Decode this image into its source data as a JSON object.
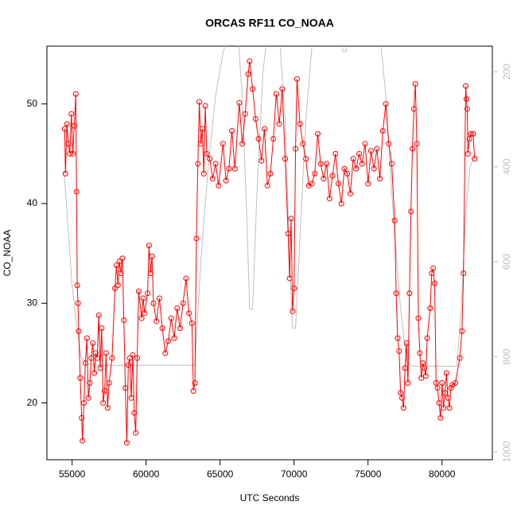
{
  "chart_data": {
    "type": "line",
    "title": "ORCAS RF11 CO_NOAA",
    "xlabel": "UTC Seconds",
    "ylabel": "CO_NOAA",
    "xlim": [
      53300,
      83400
    ],
    "ylim": [
      14.3,
      55.8
    ],
    "y2lim": [
      1017,
      146
    ],
    "xticks": [
      55000,
      60000,
      65000,
      70000,
      75000,
      80000
    ],
    "yticks": [
      20,
      30,
      40,
      50
    ],
    "y2ticks": [
      200,
      400,
      600,
      800,
      1000
    ],
    "series": [
      {
        "color": "#ff0000",
        "markers": true,
        "x": [
          54500,
          54550,
          54650,
          54750,
          54850,
          54950,
          55050,
          55150,
          55250,
          55300,
          55350,
          55400,
          55450,
          55550,
          55650,
          55700,
          55800,
          55900,
          56000,
          56100,
          56200,
          56300,
          56400,
          56500,
          56600,
          56700,
          56800,
          56900,
          57000,
          57100,
          57200,
          57300,
          57400,
          57500,
          57700,
          57900,
          58000,
          58100,
          58200,
          58300,
          58400,
          58500,
          58600,
          58700,
          58800,
          58900,
          59000,
          59100,
          59200,
          59300,
          59400,
          59500,
          59700,
          59800,
          59900,
          60100,
          60200,
          60300,
          60400,
          60500,
          60700,
          60900,
          61100,
          61300,
          61500,
          61700,
          61900,
          62100,
          62300,
          62500,
          62700,
          62900,
          63100,
          63200,
          63300,
          63400,
          63500,
          63600,
          63700,
          63800,
          63900,
          64000,
          64100,
          64300,
          64500,
          64700,
          64900,
          65200,
          65400,
          65600,
          65800,
          66000,
          66300,
          66500,
          66700,
          66900,
          67000,
          67200,
          67400,
          67600,
          67800,
          68000,
          68200,
          68400,
          68600,
          68800,
          69000,
          69200,
          69400,
          69600,
          69700,
          69800,
          69900,
          70000,
          70100,
          70200,
          70400,
          70600,
          70800,
          71000,
          71200,
          71400,
          71600,
          71800,
          72000,
          72200,
          72400,
          72600,
          72800,
          73000,
          73200,
          73400,
          73600,
          73800,
          74000,
          74200,
          74400,
          74600,
          74800,
          75000,
          75200,
          75400,
          75600,
          75800,
          76000,
          76200,
          76400,
          76600,
          76800,
          76900,
          77000,
          77100,
          77200,
          77300,
          77400,
          77500,
          77600,
          77700,
          77800,
          77900,
          78000,
          78100,
          78200,
          78300,
          78400,
          78500,
          78600,
          78700,
          78800,
          78900,
          79000,
          79200,
          79300,
          79400,
          79500,
          79600,
          79700,
          79800,
          79900,
          80000,
          80100,
          80200,
          80300,
          80400,
          80500,
          80600,
          80700,
          80900,
          81200,
          81350,
          81450,
          81600,
          81650,
          81700,
          81750,
          81850,
          81950,
          82100,
          82200
        ],
        "values": [
          47.5,
          43,
          48,
          46,
          45,
          49,
          45,
          47.8,
          51,
          41.2,
          31.8,
          30,
          27.2,
          22.5,
          18.5,
          16.2,
          20,
          24,
          26.5,
          20.5,
          22,
          24.5,
          26,
          23,
          25,
          24.5,
          28.8,
          23.5,
          27.5,
          20,
          21.2,
          25,
          19.5,
          22,
          24.5,
          31.5,
          33.8,
          31.8,
          34.2,
          33,
          34.5,
          28.3,
          21.5,
          16,
          23.8,
          24.5,
          20.5,
          24.8,
          19,
          17,
          24.5,
          31.2,
          28.5,
          30.5,
          29,
          31,
          35.8,
          33,
          34.7,
          30,
          28.2,
          30.5,
          27.5,
          25,
          26.2,
          28.5,
          26.5,
          29.5,
          27.5,
          30,
          32.5,
          29,
          28,
          21.2,
          22,
          36.5,
          44,
          50.2,
          46,
          47.5,
          43,
          49.8,
          45,
          44.5,
          42.5,
          44,
          41.8,
          46,
          42.3,
          43.5,
          47.3,
          43.5,
          50.1,
          46,
          49,
          53,
          54.3,
          51.5,
          48.5,
          46.5,
          44.3,
          47.5,
          41.8,
          43,
          46.5,
          51,
          48,
          51.5,
          44.5,
          37,
          32.5,
          38.5,
          29.2,
          31.5,
          45.5,
          52.5,
          48,
          46,
          44.5,
          41.8,
          42,
          43,
          47,
          44,
          42.5,
          44,
          40.5,
          42.8,
          45,
          42,
          40,
          43.5,
          43,
          41,
          44.5,
          43.5,
          45,
          44,
          46,
          42,
          45.3,
          43.5,
          45.5,
          42.5,
          47.3,
          50,
          46,
          44,
          38.3,
          31,
          26.5,
          25.2,
          21,
          20.5,
          19.5,
          23.5,
          26,
          22,
          31,
          39.2,
          45.5,
          49.5,
          52,
          46,
          28.5,
          25,
          22.5,
          24,
          23.5,
          22.7,
          26.5,
          29.5,
          33,
          33.5,
          32,
          22,
          21.5,
          20,
          18.5,
          22,
          19.5,
          21,
          23,
          20.5,
          19.5,
          21.5,
          21.8,
          22,
          24.5,
          27.2,
          33,
          51.8,
          50.5,
          49.5,
          45,
          46.5,
          47,
          47,
          44.5
        ]
      },
      {
        "color": "#bebebe",
        "axis": "y2",
        "x": [
          54450,
          54600,
          54800,
          55000,
          55300,
          55600,
          56000,
          57000,
          60000,
          63000,
          63300,
          63700,
          64200,
          64700,
          65200,
          65600,
          66200,
          66500,
          66800,
          67000,
          67200,
          67500,
          67900,
          68200,
          69000,
          69400,
          69700,
          69900,
          70100,
          70400,
          70800,
          71200,
          71500,
          73200,
          73300,
          73500,
          73600,
          74000,
          75800,
          76200,
          76700,
          77200,
          77600,
          78000,
          81000,
          81300,
          81600,
          81900,
          82300
        ],
        "values": [
          410,
          470,
          560,
          650,
          730,
          800,
          815,
          818,
          818,
          818,
          818,
          600,
          400,
          250,
          160,
          120,
          120,
          250,
          500,
          700,
          700,
          450,
          200,
          120,
          120,
          300,
          600,
          740,
          740,
          550,
          300,
          150,
          120,
          120,
          158,
          158,
          140,
          120,
          120,
          250,
          500,
          700,
          810,
          820,
          820,
          700,
          500,
          400,
          370
        ]
      }
    ]
  }
}
